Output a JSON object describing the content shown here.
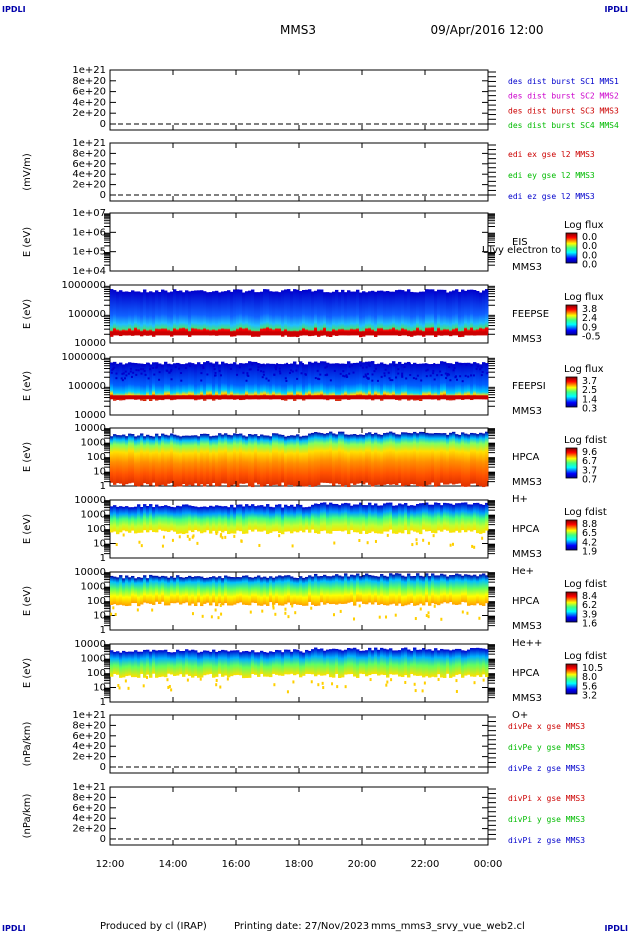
{
  "header": {
    "corner_left_top": "IPDLI",
    "corner_right_top": "IPDLI",
    "corner_left_bottom": "IPDLI",
    "corner_right_bottom": "IPDLI",
    "mission": "MMS3",
    "datetime": "09/Apr/2016 12:00"
  },
  "footer": {
    "produced_by": "Produced by cl (IRAP)",
    "printing_date": "Printing date: 27/Nov/2023",
    "script_name": "mms_mms3_srvy_vue_web2.cl"
  },
  "chart_data": {
    "type": "heatmap",
    "x_axis": {
      "start": "12:00",
      "end": "00:00",
      "ticks": [
        "12:00",
        "14:00",
        "16:00",
        "18:00",
        "20:00",
        "22:00",
        "00:00"
      ]
    },
    "panels": [
      {
        "kind": "line",
        "ylabel": "",
        "yticks": [
          "1e+21",
          "8e+20",
          "6e+20",
          "4e+20",
          "2e+20",
          "0"
        ],
        "legend": [
          {
            "text": "des dist burst SC1 MMS1",
            "color": "#0000cc"
          },
          {
            "text": "des dist burst SC2 MMS2",
            "color": "#cc00cc"
          },
          {
            "text": "des dist burst SC3 MMS3",
            "color": "#cc0000"
          },
          {
            "text": "des dist burst SC4 MMS4",
            "color": "#00bb00"
          }
        ]
      },
      {
        "kind": "line",
        "ylabel": "(mV/m)",
        "yticks": [
          "1e+21",
          "8e+20",
          "6e+20",
          "4e+20",
          "2e+20",
          "0"
        ],
        "legend": [
          {
            "text": "edi ex gse l2 MMS3",
            "color": "#cc0000"
          },
          {
            "text": "edi ey gse l2 MMS3",
            "color": "#00bb00"
          },
          {
            "text": "edi ez gse l2 MMS3",
            "color": "#0000cc"
          }
        ]
      },
      {
        "kind": "spectrogram",
        "ylabel": "E (eV)",
        "yticks": [
          "1e+07",
          "1e+06",
          "1e+05",
          "1e+04"
        ],
        "instrument": [
          "EIS",
          "MMS3"
        ],
        "overlay_text": "Ulvy electron to",
        "colorbar": {
          "title": "Log flux",
          "ticks": [
            "0.0",
            "0.0",
            "0.0",
            "0.0"
          ]
        },
        "coverage": null
      },
      {
        "kind": "spectrogram",
        "ylabel": "E (eV)",
        "yticks": [
          "1000000",
          "100000",
          "10000"
        ],
        "instrument": [
          "FEEPSE",
          "MMS3"
        ],
        "colorbar": {
          "title": "Log flux",
          "ticks": [
            "3.8",
            "2.4",
            "0.9",
            "-0.5"
          ]
        },
        "coverage": {
          "top_frac": 0.1,
          "bottom_frac": 0.86,
          "profile": "feepse"
        }
      },
      {
        "kind": "spectrogram",
        "ylabel": "E (eV)",
        "yticks": [
          "1000000",
          "100000",
          "10000"
        ],
        "instrument": [
          "FEEPSI",
          "MMS3"
        ],
        "colorbar": {
          "title": "Log flux",
          "ticks": [
            "3.7",
            "2.5",
            "1.4",
            "0.3"
          ]
        },
        "coverage": {
          "top_frac": 0.1,
          "bottom_frac": 0.72,
          "profile": "feepsi"
        }
      },
      {
        "kind": "spectrogram",
        "ylabel": "E (eV)",
        "yticks": [
          "10000",
          "1000",
          "100",
          "10",
          "1"
        ],
        "instrument": [
          "HPCA",
          "MMS3",
          "H+"
        ],
        "colorbar": {
          "title": "Log fdist",
          "ticks": [
            "9.6",
            "6.7",
            "3.7",
            "0.7"
          ]
        },
        "coverage": {
          "top_frac": 0.12,
          "bottom_frac": 0.98,
          "profile": "h"
        }
      },
      {
        "kind": "spectrogram",
        "ylabel": "E (eV)",
        "yticks": [
          "10000",
          "1000",
          "100",
          "10",
          "1"
        ],
        "instrument": [
          "HPCA",
          "MMS3",
          "He+"
        ],
        "colorbar": {
          "title": "Log fdist",
          "ticks": [
            "8.8",
            "6.5",
            "4.2",
            "1.9"
          ]
        },
        "coverage": {
          "top_frac": 0.1,
          "bottom_frac": 0.55,
          "profile": "he"
        }
      },
      {
        "kind": "spectrogram",
        "ylabel": "E (eV)",
        "yticks": [
          "10000",
          "1000",
          "100",
          "10",
          "1"
        ],
        "instrument": [
          "HPCA",
          "MMS3",
          "He++"
        ],
        "colorbar": {
          "title": "Log fdist",
          "ticks": [
            "8.4",
            "6.2",
            "3.9",
            "1.6"
          ]
        },
        "coverage": {
          "top_frac": 0.08,
          "bottom_frac": 0.55,
          "profile": "he2"
        }
      },
      {
        "kind": "spectrogram",
        "ylabel": "E (eV)",
        "yticks": [
          "10000",
          "1000",
          "100",
          "10",
          "1"
        ],
        "instrument": [
          "HPCA",
          "MMS3",
          "O+"
        ],
        "colorbar": {
          "title": "Log fdist",
          "ticks": [
            "10.5",
            "8.0",
            "5.6",
            "3.2"
          ]
        },
        "coverage": {
          "top_frac": 0.12,
          "bottom_frac": 0.55,
          "profile": "o"
        }
      },
      {
        "kind": "line",
        "ylabel": "(nPa/km)",
        "yticks": [
          "1e+21",
          "8e+20",
          "6e+20",
          "4e+20",
          "2e+20",
          "0"
        ],
        "legend": [
          {
            "text": "divPe x gse MMS3",
            "color": "#cc0000"
          },
          {
            "text": "divPe y gse MMS3",
            "color": "#00bb00"
          },
          {
            "text": "divPe z gse MMS3",
            "color": "#0000cc"
          }
        ]
      },
      {
        "kind": "line",
        "ylabel": "(nPa/km)",
        "yticks": [
          "1e+21",
          "8e+20",
          "6e+20",
          "4e+20",
          "2e+20",
          "0"
        ],
        "legend": [
          {
            "text": "divPi x gse MMS3",
            "color": "#cc0000"
          },
          {
            "text": "divPi y gse MMS3",
            "color": "#00bb00"
          },
          {
            "text": "divPi z gse MMS3",
            "color": "#0000cc"
          }
        ]
      }
    ]
  }
}
